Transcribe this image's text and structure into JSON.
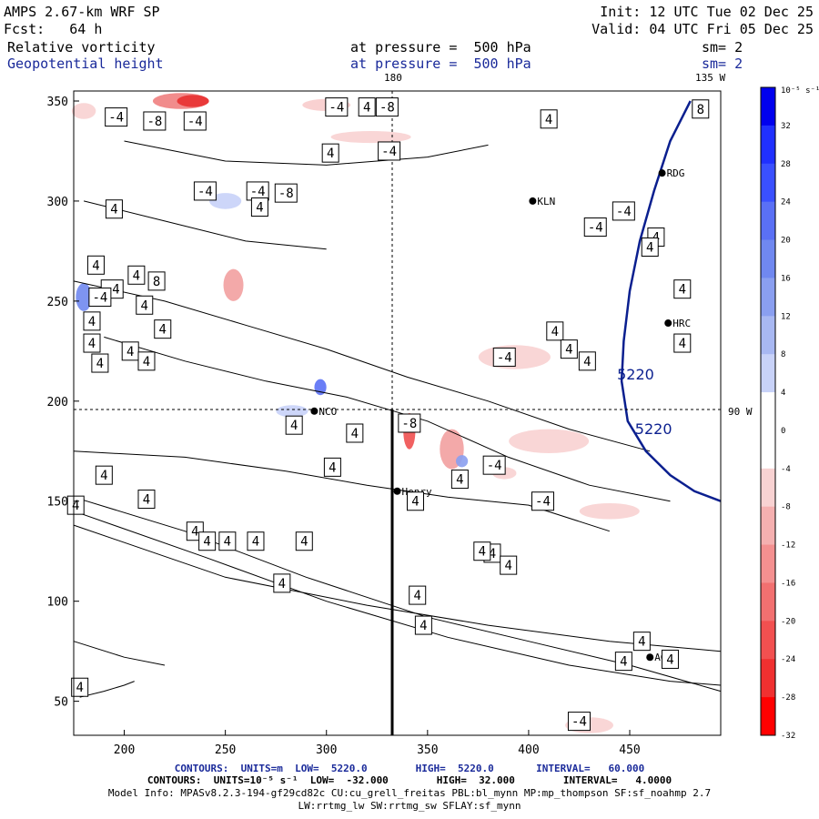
{
  "header": {
    "model": "AMPS 2.67-km WRF SP",
    "fcst": "Fcst:   64 h",
    "init": "Init: 12 UTC Tue 02 Dec 25",
    "valid": "Valid: 04 UTC Fri 05 Dec 25",
    "field1": "Relative vorticity",
    "field1_level": "at pressure =  500 hPa",
    "field1_sm": "sm= 2",
    "field2": "Geopotential height",
    "field2_level": "at pressure =  500 hPa",
    "field2_sm": "sm= 2"
  },
  "map_labels": {
    "meridian_180": "180",
    "meridian_135w": "135 W",
    "meridian_90w": "90 W"
  },
  "footer": {
    "contours_height": "CONTOURS:  UNITS=m  LOW=  5220.0        HIGH=  5220.0       INTERVAL=   60.000",
    "contours_vort": "CONTOURS:  UNITS=10⁻⁵ s⁻¹  LOW=  -32.000        HIGH=  32.000        INTERVAL=   4.0000",
    "model_info": "Model Info: MPASv8.2.3-194-gf29cd82c CU:cu_grell_freitas PBL:bl_mynn MP:mp_thompson SF:sf_noahmp 2.7",
    "model_info2": "LW:rrtmg_lw SW:rrtmg_sw SFLAY:sf_mynn"
  },
  "colors": {
    "contour": "#000000",
    "height_contour": "#0a1f8f",
    "station": "#000000"
  },
  "chart_data": {
    "type": "heatmap",
    "x_ticks": [
      200,
      250,
      300,
      350,
      400,
      450
    ],
    "y_ticks": [
      50,
      100,
      150,
      200,
      250,
      300,
      350
    ],
    "xlim": [
      175,
      495
    ],
    "ylim": [
      33,
      355
    ],
    "colorbar": {
      "unit_label": "10⁻⁵ s⁻¹",
      "ticks": [
        "32",
        "28",
        "24",
        "20",
        "16",
        "12",
        "8",
        "4",
        "0",
        "-4",
        "-8",
        "-12",
        "-16",
        "-20",
        "-24",
        "-28",
        "-32"
      ],
      "colors": [
        "#0000ee",
        "#2030ff",
        "#3a50ff",
        "#5a70f5",
        "#7088f0",
        "#8a9ff0",
        "#a8b8f2",
        "#c8d2f8",
        "#ffffff",
        "#ffffff",
        "#f8d2d2",
        "#f5b0b0",
        "#f49090",
        "#f27070",
        "#f25050",
        "#f03030",
        "#ff0000"
      ]
    },
    "stations": [
      {
        "name": "KLN",
        "x": 402,
        "y": 300
      },
      {
        "name": "RDG",
        "x": 466,
        "y": 314
      },
      {
        "name": "HRC",
        "x": 469,
        "y": 239
      },
      {
        "name": "NCO",
        "x": 294,
        "y": 195
      },
      {
        "name": "Henry",
        "x": 335,
        "y": 155
      },
      {
        "name": "AGO",
        "x": 460,
        "y": 72
      }
    ],
    "height_contour": {
      "value": "5220",
      "points": [
        [
          480,
          350
        ],
        [
          470,
          330
        ],
        [
          462,
          305
        ],
        [
          455,
          280
        ],
        [
          450,
          255
        ],
        [
          447,
          230
        ],
        [
          446,
          210
        ],
        [
          449,
          190
        ],
        [
          458,
          175
        ],
        [
          470,
          163
        ],
        [
          482,
          155
        ],
        [
          495,
          150
        ]
      ]
    },
    "contour_labels": [
      {
        "text": "-4",
        "x": 196,
        "y": 342
      },
      {
        "text": "-8",
        "x": 215,
        "y": 340
      },
      {
        "text": "-4",
        "x": 235,
        "y": 340
      },
      {
        "text": "-4",
        "x": 305,
        "y": 347
      },
      {
        "text": "4",
        "x": 320,
        "y": 347
      },
      {
        "text": "-8",
        "x": 330,
        "y": 347
      },
      {
        "text": "4",
        "x": 302,
        "y": 324
      },
      {
        "text": "-4",
        "x": 331,
        "y": 325
      },
      {
        "text": "-4",
        "x": 240,
        "y": 305
      },
      {
        "text": "-4",
        "x": 266,
        "y": 305
      },
      {
        "text": "-8",
        "x": 280,
        "y": 304
      },
      {
        "text": "4",
        "x": 195,
        "y": 296
      },
      {
        "text": "4",
        "x": 267,
        "y": 297
      },
      {
        "text": "8",
        "x": 216,
        "y": 260
      },
      {
        "text": "4",
        "x": 186,
        "y": 268
      },
      {
        "text": "4",
        "x": 206,
        "y": 263
      },
      {
        "text": "-4",
        "x": 194,
        "y": 256
      },
      {
        "text": "-4",
        "x": 188,
        "y": 252
      },
      {
        "text": "4",
        "x": 210,
        "y": 248
      },
      {
        "text": "4",
        "x": 184,
        "y": 240
      },
      {
        "text": "4",
        "x": 219,
        "y": 236
      },
      {
        "text": "4",
        "x": 203,
        "y": 225
      },
      {
        "text": "4",
        "x": 184,
        "y": 229
      },
      {
        "text": "4",
        "x": 188,
        "y": 219
      },
      {
        "text": "4",
        "x": 211,
        "y": 220
      },
      {
        "text": "-4",
        "x": 388,
        "y": 222
      },
      {
        "text": "4",
        "x": 413,
        "y": 235
      },
      {
        "text": "4",
        "x": 420,
        "y": 226
      },
      {
        "text": "4",
        "x": 429,
        "y": 220
      },
      {
        "text": "4",
        "x": 476,
        "y": 229
      },
      {
        "text": "4",
        "x": 476,
        "y": 256
      },
      {
        "text": "4",
        "x": 463,
        "y": 282
      },
      {
        "text": "4",
        "x": 460,
        "y": 277
      },
      {
        "text": "-4",
        "x": 447,
        "y": 295
      },
      {
        "text": "-4",
        "x": 433,
        "y": 287
      },
      {
        "text": "8",
        "x": 485,
        "y": 346
      },
      {
        "text": "4",
        "x": 410,
        "y": 341
      },
      {
        "text": "-8",
        "x": 341,
        "y": 189
      },
      {
        "text": "4",
        "x": 284,
        "y": 188
      },
      {
        "text": "4",
        "x": 314,
        "y": 184
      },
      {
        "text": "-4",
        "x": 383,
        "y": 168
      },
      {
        "text": "4",
        "x": 366,
        "y": 161
      },
      {
        "text": "4",
        "x": 303,
        "y": 167
      },
      {
        "text": "-4",
        "x": 407,
        "y": 150
      },
      {
        "text": "4",
        "x": 190,
        "y": 163
      },
      {
        "text": "4",
        "x": 211,
        "y": 151
      },
      {
        "text": "4",
        "x": 176,
        "y": 148
      },
      {
        "text": "4",
        "x": 235,
        "y": 135
      },
      {
        "text": "4",
        "x": 241,
        "y": 130
      },
      {
        "text": "4",
        "x": 251,
        "y": 130
      },
      {
        "text": "4",
        "x": 265,
        "y": 130
      },
      {
        "text": "4",
        "x": 289,
        "y": 130
      },
      {
        "text": "4",
        "x": 344,
        "y": 150
      },
      {
        "text": "4",
        "x": 382,
        "y": 124
      },
      {
        "text": "4",
        "x": 390,
        "y": 118
      },
      {
        "text": "4",
        "x": 377,
        "y": 125
      },
      {
        "text": "4",
        "x": 278,
        "y": 109
      },
      {
        "text": "4",
        "x": 345,
        "y": 103
      },
      {
        "text": "4",
        "x": 348,
        "y": 88
      },
      {
        "text": "4",
        "x": 456,
        "y": 80
      },
      {
        "text": "4",
        "x": 447,
        "y": 70
      },
      {
        "text": "4",
        "x": 470,
        "y": 71
      },
      {
        "text": "4",
        "x": 178,
        "y": 57
      },
      {
        "text": "-4",
        "x": 425,
        "y": 40
      }
    ],
    "contour_label_visible": [
      {
        "text": "-4",
        "x": 202,
        "y": 342
      },
      {
        "text": "-8",
        "x": 218,
        "y": 338
      },
      {
        "text": "-4",
        "x": 234,
        "y": 338
      },
      {
        "text": "-4",
        "x": 306,
        "y": 346
      },
      {
        "text": "4",
        "x": 321,
        "y": 346
      },
      {
        "text": "-8",
        "x": 329,
        "y": 346
      }
    ]
  }
}
